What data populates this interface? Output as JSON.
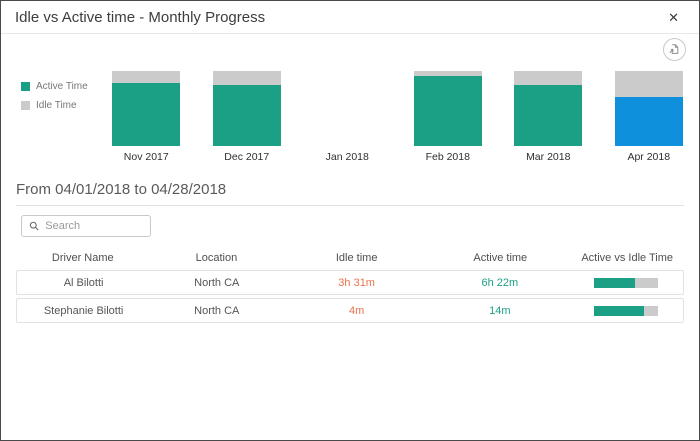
{
  "dialog": {
    "title": "Idle vs Active time - Monthly Progress"
  },
  "icons": {
    "close": "✕",
    "export": "document-export",
    "search": "magnifier"
  },
  "chart_data": {
    "type": "bar",
    "stacked": true,
    "title": "Idle vs Active time - Monthly Progress",
    "categories": [
      "Nov 2017",
      "Dec 2017",
      "Jan 2018",
      "Feb 2018",
      "Mar 2018",
      "Apr 2018"
    ],
    "series": [
      {
        "name": "Active Time",
        "values": [
          84,
          81,
          0,
          93,
          81,
          65
        ]
      },
      {
        "name": "Idle Time",
        "values": [
          16,
          19,
          0,
          7,
          19,
          35
        ]
      }
    ],
    "unit": "percent-of-month-total",
    "selected_category": "Apr 2018",
    "legend_position": "left",
    "colors": {
      "active": "#1ba085",
      "idle": "#cbcbcb",
      "selected_active": "#0f90dc"
    }
  },
  "subheader": {
    "date_range": "From 04/01/2018 to 04/28/2018"
  },
  "search": {
    "placeholder": "Search",
    "value": ""
  },
  "table": {
    "columns": [
      "Driver Name",
      "Location",
      "Idle time",
      "Active time",
      "Active vs Idle Time"
    ],
    "rows": [
      {
        "driver": "Al Bilotti",
        "location": "North CA",
        "idle_time": "3h 31m",
        "active_time": "6h 22m",
        "active_pct": 64
      },
      {
        "driver": "Stephanie Bilotti",
        "location": "North CA",
        "idle_time": "4m",
        "active_time": "14m",
        "active_pct": 78
      }
    ],
    "value_colors": {
      "idle": "#e8734d",
      "active": "#1ba085"
    }
  }
}
